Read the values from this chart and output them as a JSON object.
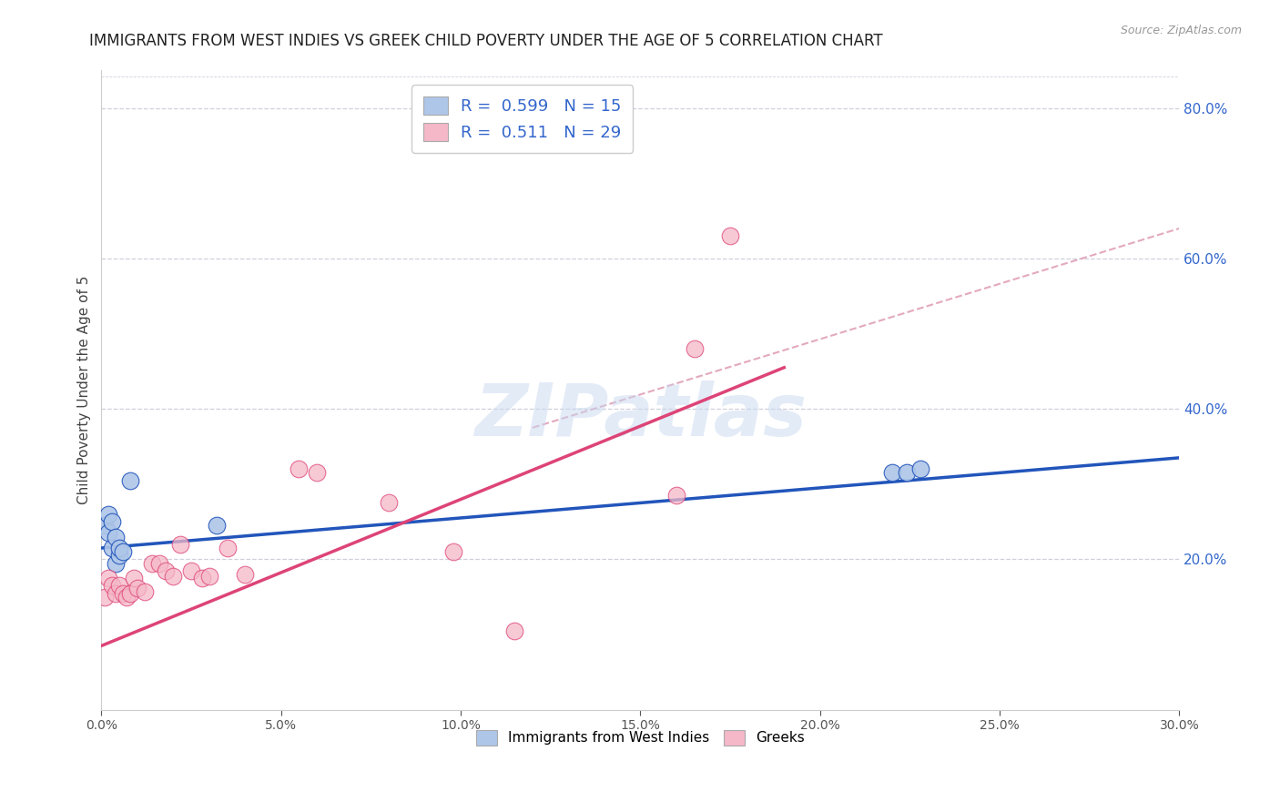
{
  "title": "IMMIGRANTS FROM WEST INDIES VS GREEK CHILD POVERTY UNDER THE AGE OF 5 CORRELATION CHART",
  "source": "Source: ZipAtlas.com",
  "ylabel_text": "Child Poverty Under the Age of 5",
  "watermark": "ZIPatlas",
  "xmin": 0.0,
  "xmax": 0.3,
  "ymin": 0.0,
  "ymax": 0.85,
  "xticks": [
    0.0,
    0.05,
    0.1,
    0.15,
    0.2,
    0.25,
    0.3
  ],
  "yticks_right": [
    0.2,
    0.4,
    0.6,
    0.8
  ],
  "ytick_labels_right": [
    "20.0%",
    "40.0%",
    "60.0%",
    "80.0%"
  ],
  "xtick_labels": [
    "0.0%",
    "",
    "5.0%",
    "",
    "10.0%",
    "",
    "15.0%",
    "",
    "20.0%",
    "",
    "25.0%",
    "",
    "30.0%"
  ],
  "xtick_vals_sparse": [
    0.0,
    0.05,
    0.1,
    0.15,
    0.2,
    0.25,
    0.3
  ],
  "xtick_labels_sparse": [
    "0.0%",
    "5.0%",
    "10.0%",
    "15.0%",
    "20.0%",
    "25.0%",
    "30.0%"
  ],
  "blue_scatter_x": [
    0.001,
    0.002,
    0.002,
    0.003,
    0.003,
    0.004,
    0.004,
    0.005,
    0.005,
    0.006,
    0.008,
    0.032,
    0.22,
    0.224,
    0.228
  ],
  "blue_scatter_y": [
    0.245,
    0.26,
    0.235,
    0.25,
    0.215,
    0.23,
    0.195,
    0.205,
    0.215,
    0.21,
    0.305,
    0.245,
    0.315,
    0.315,
    0.32
  ],
  "pink_scatter_x": [
    0.001,
    0.002,
    0.003,
    0.004,
    0.005,
    0.006,
    0.007,
    0.008,
    0.009,
    0.01,
    0.012,
    0.014,
    0.016,
    0.018,
    0.02,
    0.022,
    0.025,
    0.028,
    0.03,
    0.035,
    0.04,
    0.055,
    0.06,
    0.08,
    0.098,
    0.115,
    0.16,
    0.165,
    0.175
  ],
  "pink_scatter_y": [
    0.15,
    0.175,
    0.165,
    0.155,
    0.165,
    0.155,
    0.15,
    0.155,
    0.175,
    0.162,
    0.157,
    0.195,
    0.195,
    0.185,
    0.178,
    0.22,
    0.185,
    0.175,
    0.178,
    0.215,
    0.18,
    0.32,
    0.315,
    0.275,
    0.21,
    0.105,
    0.285,
    0.48,
    0.63
  ],
  "blue_line_x": [
    0.0,
    0.3
  ],
  "blue_line_y": [
    0.215,
    0.335
  ],
  "pink_line_x": [
    0.0,
    0.19
  ],
  "pink_line_y": [
    0.085,
    0.455
  ],
  "dashed_line_x": [
    0.12,
    0.3
  ],
  "dashed_line_y": [
    0.375,
    0.64
  ],
  "blue_color": "#aec6e8",
  "pink_color": "#f5b8c8",
  "blue_line_color": "#2255bb",
  "pink_line_color": "#dd4477",
  "dashed_line_color": "#e0a0b8",
  "legend_R_blue": "0.599",
  "legend_N_blue": "15",
  "legend_R_pink": "0.511",
  "legend_N_pink": "29",
  "legend_label_blue": "Immigrants from West Indies",
  "legend_label_pink": "Greeks",
  "background_color": "#ffffff",
  "grid_color": "#d0d0dc",
  "title_fontsize": 12,
  "axis_fontsize": 11,
  "tick_fontsize": 10,
  "right_tick_color": "#3366cc"
}
